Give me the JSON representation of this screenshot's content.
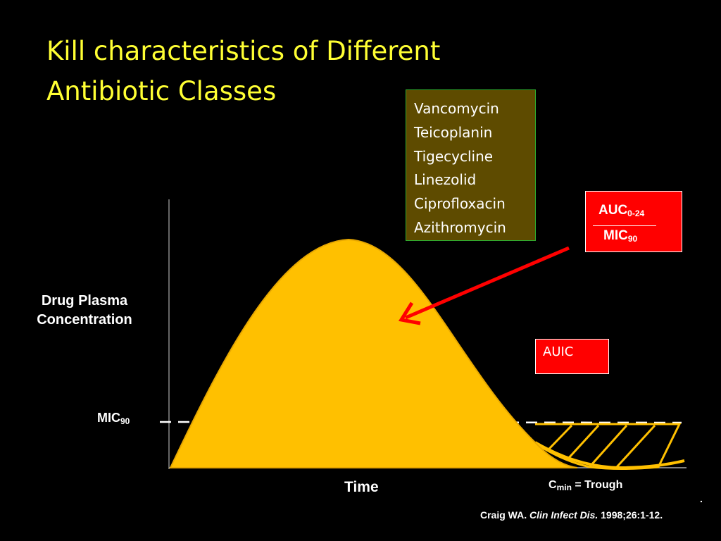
{
  "title": {
    "line1": "Kill characteristics of Different",
    "line2": "Antibiotic Classes"
  },
  "drug_list": [
    "Vancomycin",
    "Teicoplanin",
    "Tigecycline",
    "Linezolid",
    "Ciprofloxacin",
    "Azithromycin"
  ],
  "auc_box": {
    "numerator": "AUC",
    "numerator_sub": "0-24",
    "denominator": "MIC",
    "denominator_sub": "90"
  },
  "auic_label": "AUIC",
  "y_axis_label": {
    "line1": "Drug Plasma",
    "line2": "Concentration"
  },
  "mic_label": "MIC",
  "mic_label_sub": "90",
  "x_axis_label": "Time",
  "cmin_label": {
    "base": "C",
    "sub": "min",
    "rest": " = Trough"
  },
  "citation": {
    "author": "Craig WA. ",
    "journal": "Clin Infect Dis.",
    "rest": " 1998;26:1-12."
  },
  "footnote_mark": ".",
  "colors": {
    "background": "#000000",
    "title": "#ffff33",
    "curve_fill": "#ffc000",
    "drug_box": "#5e4b00",
    "drug_box_border": "#2fae2f",
    "red_box": "#ff0000",
    "arrow": "#ff0000"
  }
}
